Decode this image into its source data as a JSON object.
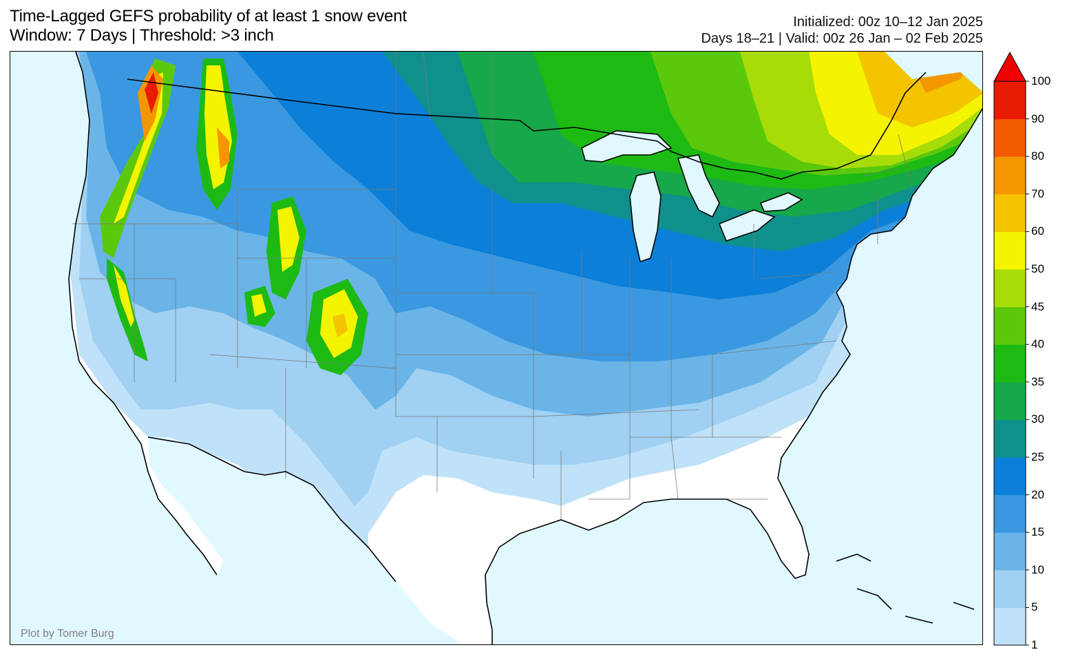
{
  "header": {
    "title_line1": "Time-Lagged GEFS probability of at least 1 snow event",
    "title_line2": "Window: 7 Days | Threshold: >3 inch",
    "init_line": "Initialized: 00z 10–12 Jan 2025",
    "valid_line": "Days 18–21 | Valid: 00z 26 Jan – 02 Feb 2025"
  },
  "map": {
    "credit": "Plot by Tomer Burg",
    "ocean_color": "#e0f8ff",
    "land_color": "#ffffff"
  },
  "colorbar": {
    "levels": [
      "1",
      "5",
      "10",
      "15",
      "20",
      "25",
      "30",
      "35",
      "40",
      "45",
      "50",
      "60",
      "70",
      "80",
      "90",
      "100"
    ],
    "colors": [
      "#c0e2f8",
      "#a0d0f2",
      "#6ab4e8",
      "#3a98e0",
      "#0c7fd8",
      "#10908c",
      "#16a84a",
      "#1eba14",
      "#5cc80c",
      "#a8dc08",
      "#f4f400",
      "#f4c400",
      "#f49600",
      "#f45a00",
      "#e81c00"
    ],
    "extend_color": "#ee0000"
  }
}
